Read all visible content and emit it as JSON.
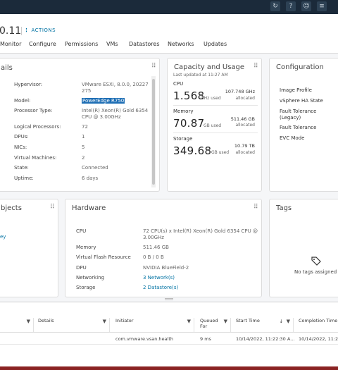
{
  "header": {
    "host_title": "0.11",
    "actions_dots": "⋮",
    "actions_label": "ACTIONS",
    "tabs": [
      "Monitor",
      "Configure",
      "Permissions",
      "VMs",
      "Datastores",
      "Networks",
      "Updates"
    ]
  },
  "details": {
    "title_partial": "ails",
    "rows": [
      {
        "label": "Hypervisor:",
        "value": "VMware ESXi, 8.0.0, 20227",
        "value2": "275"
      },
      {
        "label": "Model:",
        "value": "PowerEdge R750"
      },
      {
        "label": "Processor Type:",
        "value": "Intel(R) Xeon(R) Gold 6354",
        "value2": "CPU @ 3.00GHz"
      },
      {
        "label": "Logical Processors:",
        "value": "72"
      },
      {
        "label": "DPUs:",
        "value": "1"
      },
      {
        "label": "NICs:",
        "value": "5"
      },
      {
        "label": "Virtual Machines:",
        "value": "2"
      },
      {
        "label": "State:",
        "value": "Connected"
      },
      {
        "label": "Uptime:",
        "value": "6 days"
      }
    ]
  },
  "capacity": {
    "title": "Capacity and Usage",
    "updated": "Last updated at 11:27 AM",
    "cpu": {
      "name": "CPU",
      "used": "1.568",
      "unit": "GHz used",
      "alloc": "107.748 GHz",
      "alloc_label": "allocated"
    },
    "memory": {
      "name": "Memory",
      "used": "70.87",
      "unit": "GB used",
      "alloc": "511.46 GB",
      "alloc_label": "allocated"
    },
    "storage": {
      "name": "Storage",
      "used": "349.68",
      "unit": "GB used",
      "alloc": "10.79 TB",
      "alloc_label": "allocated"
    }
  },
  "configuration": {
    "title": "Configuration",
    "items": [
      "Image Profile",
      "vSphere HA State",
      "Fault Tolerance",
      "(Legacy)",
      "Fault Tolerance",
      "EVC Mode"
    ]
  },
  "objects": {
    "title_partial": "bjects",
    "link_partial": "ey"
  },
  "hardware": {
    "title": "Hardware",
    "rows": [
      {
        "label": "CPU",
        "value": "72 CPU(s) x Intel(R) Xeon(R) Gold 6354 CPU @",
        "value2": "3.00GHz"
      },
      {
        "label": "Memory",
        "value": "511.46 GB"
      },
      {
        "label": "Virtual Flash Resource",
        "value": "0 B / 0 B"
      },
      {
        "label": "DPU",
        "value": "NVIDIA BlueField-2"
      },
      {
        "label": "Networking",
        "value": "3 Network(s)"
      },
      {
        "label": "Storage",
        "value": "2 Datastore(s)"
      }
    ]
  },
  "tags": {
    "title": "Tags",
    "empty": "No tags assigned"
  },
  "tasks": {
    "headers": {
      "details": "Details",
      "initiator": "Initiator",
      "queued_1": "Queued",
      "queued_2": "For",
      "start": "Start Time",
      "completion": "Completion Time"
    },
    "filter_icon": "▼",
    "sort_icon": "↓",
    "row": {
      "initiator": "com.vmware.vsan.health",
      "queued": "9 ms",
      "start": "10/14/2022, 11:22:30 A...",
      "completion": "10/14/2022, 11:22:"
    }
  },
  "drag_handle": "⠿",
  "colors": {
    "selection": "#1f6fb5",
    "link": "#0072a3",
    "topbar": "#1b2a3a"
  }
}
